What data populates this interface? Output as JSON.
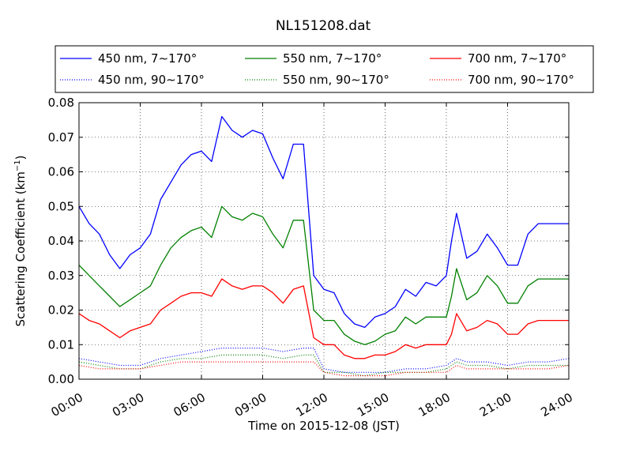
{
  "chart_data": {
    "type": "line",
    "title": "NL151208.dat",
    "xlabel": "Time on 2015-12-08 (JST)",
    "ylabel": "Scattering Coefficient (km",
    "ylabel_sup": "−1",
    "ylabel_close": ")",
    "xlim_hours": [
      0,
      24
    ],
    "ylim": [
      0,
      0.08
    ],
    "x_ticks": [
      "00:00",
      "03:00",
      "06:00",
      "09:00",
      "12:00",
      "15:00",
      "18:00",
      "21:00",
      "24:00"
    ],
    "y_ticks": [
      "0.00",
      "0.01",
      "0.02",
      "0.03",
      "0.04",
      "0.05",
      "0.06",
      "0.07",
      "0.08"
    ],
    "grid": true,
    "legend_position": "top (above plot)",
    "series": [
      {
        "name": "450 nm, 7∼170°",
        "color": "#0000ff",
        "style": "solid",
        "x": [
          "00:00",
          "00:30",
          "01:00",
          "01:30",
          "02:00",
          "02:30",
          "03:00",
          "03:30",
          "04:00",
          "04:30",
          "05:00",
          "05:30",
          "06:00",
          "06:30",
          "07:00",
          "07:30",
          "08:00",
          "08:30",
          "09:00",
          "09:30",
          "10:00",
          "10:30",
          "11:00",
          "11:30",
          "12:00",
          "12:30",
          "13:00",
          "13:30",
          "14:00",
          "14:30",
          "15:00",
          "15:30",
          "16:00",
          "16:30",
          "17:00",
          "17:30",
          "18:00",
          "18:15",
          "18:30",
          "19:00",
          "19:30",
          "20:00",
          "20:30",
          "21:00",
          "21:30",
          "22:00",
          "22:30",
          "23:00",
          "23:30",
          "24:00"
        ],
        "y": [
          0.05,
          0.045,
          0.042,
          0.036,
          0.032,
          0.036,
          0.038,
          0.042,
          0.052,
          0.057,
          0.062,
          0.065,
          0.066,
          0.063,
          0.076,
          0.072,
          0.07,
          0.072,
          0.071,
          0.064,
          0.058,
          0.068,
          0.068,
          0.03,
          0.026,
          0.025,
          0.019,
          0.016,
          0.015,
          0.018,
          0.019,
          0.021,
          0.026,
          0.024,
          0.028,
          0.027,
          0.03,
          0.04,
          0.048,
          0.035,
          0.037,
          0.042,
          0.038,
          0.033,
          0.033,
          0.042,
          0.045,
          0.045,
          0.045,
          0.045
        ]
      },
      {
        "name": "550 nm, 7∼170°",
        "color": "#008000",
        "style": "solid",
        "x": [
          "00:00",
          "00:30",
          "01:00",
          "01:30",
          "02:00",
          "02:30",
          "03:00",
          "03:30",
          "04:00",
          "04:30",
          "05:00",
          "05:30",
          "06:00",
          "06:30",
          "07:00",
          "07:30",
          "08:00",
          "08:30",
          "09:00",
          "09:30",
          "10:00",
          "10:30",
          "11:00",
          "11:30",
          "12:00",
          "12:30",
          "13:00",
          "13:30",
          "14:00",
          "14:30",
          "15:00",
          "15:30",
          "16:00",
          "16:30",
          "17:00",
          "17:30",
          "18:00",
          "18:15",
          "18:30",
          "19:00",
          "19:30",
          "20:00",
          "20:30",
          "21:00",
          "21:30",
          "22:00",
          "22:30",
          "23:00",
          "23:30",
          "24:00"
        ],
        "y": [
          0.033,
          0.03,
          0.027,
          0.024,
          0.021,
          0.023,
          0.025,
          0.027,
          0.033,
          0.038,
          0.041,
          0.043,
          0.044,
          0.041,
          0.05,
          0.047,
          0.046,
          0.048,
          0.047,
          0.042,
          0.038,
          0.046,
          0.046,
          0.02,
          0.017,
          0.017,
          0.013,
          0.011,
          0.01,
          0.011,
          0.013,
          0.014,
          0.018,
          0.016,
          0.018,
          0.018,
          0.018,
          0.024,
          0.032,
          0.023,
          0.025,
          0.03,
          0.027,
          0.022,
          0.022,
          0.027,
          0.029,
          0.029,
          0.029,
          0.029
        ]
      },
      {
        "name": "700 nm, 7∼170°",
        "color": "#ff0000",
        "style": "solid",
        "x": [
          "00:00",
          "00:30",
          "01:00",
          "01:30",
          "02:00",
          "02:30",
          "03:00",
          "03:30",
          "04:00",
          "04:30",
          "05:00",
          "05:30",
          "06:00",
          "06:30",
          "07:00",
          "07:30",
          "08:00",
          "08:30",
          "09:00",
          "09:30",
          "10:00",
          "10:30",
          "11:00",
          "11:30",
          "12:00",
          "12:30",
          "13:00",
          "13:30",
          "14:00",
          "14:30",
          "15:00",
          "15:30",
          "16:00",
          "16:30",
          "17:00",
          "17:30",
          "18:00",
          "18:15",
          "18:30",
          "19:00",
          "19:30",
          "20:00",
          "20:30",
          "21:00",
          "21:30",
          "22:00",
          "22:30",
          "23:00",
          "23:30",
          "24:00"
        ],
        "y": [
          0.019,
          0.017,
          0.016,
          0.014,
          0.012,
          0.014,
          0.015,
          0.016,
          0.02,
          0.022,
          0.024,
          0.025,
          0.025,
          0.024,
          0.029,
          0.027,
          0.026,
          0.027,
          0.027,
          0.025,
          0.022,
          0.026,
          0.027,
          0.012,
          0.01,
          0.01,
          0.007,
          0.006,
          0.006,
          0.007,
          0.007,
          0.008,
          0.01,
          0.009,
          0.01,
          0.01,
          0.01,
          0.013,
          0.019,
          0.014,
          0.015,
          0.017,
          0.016,
          0.013,
          0.013,
          0.016,
          0.017,
          0.017,
          0.017,
          0.017
        ]
      },
      {
        "name": "450 nm, 90∼170°",
        "color": "#0000ff",
        "style": "dotted",
        "x": [
          "00:00",
          "01:00",
          "02:00",
          "03:00",
          "04:00",
          "05:00",
          "06:00",
          "07:00",
          "08:00",
          "09:00",
          "10:00",
          "11:00",
          "11:30",
          "12:00",
          "13:00",
          "14:00",
          "15:00",
          "16:00",
          "17:00",
          "18:00",
          "18:30",
          "19:00",
          "20:00",
          "21:00",
          "22:00",
          "23:00",
          "24:00"
        ],
        "y": [
          0.006,
          0.005,
          0.004,
          0.004,
          0.006,
          0.007,
          0.008,
          0.009,
          0.009,
          0.009,
          0.008,
          0.009,
          0.009,
          0.003,
          0.002,
          0.002,
          0.002,
          0.003,
          0.003,
          0.004,
          0.006,
          0.005,
          0.005,
          0.004,
          0.005,
          0.005,
          0.006
        ]
      },
      {
        "name": "550 nm, 90∼170°",
        "color": "#008000",
        "style": "dotted",
        "x": [
          "00:00",
          "01:00",
          "02:00",
          "03:00",
          "04:00",
          "05:00",
          "06:00",
          "07:00",
          "08:00",
          "09:00",
          "10:00",
          "11:00",
          "11:30",
          "12:00",
          "13:00",
          "14:00",
          "15:00",
          "16:00",
          "17:00",
          "18:00",
          "18:30",
          "19:00",
          "20:00",
          "21:00",
          "22:00",
          "23:00",
          "24:00"
        ],
        "y": [
          0.005,
          0.004,
          0.003,
          0.003,
          0.005,
          0.006,
          0.006,
          0.007,
          0.007,
          0.007,
          0.006,
          0.007,
          0.007,
          0.002,
          0.002,
          0.001,
          0.002,
          0.002,
          0.002,
          0.003,
          0.005,
          0.004,
          0.004,
          0.003,
          0.004,
          0.004,
          0.004
        ]
      },
      {
        "name": "700 nm, 90∼170°",
        "color": "#ff0000",
        "style": "dotted",
        "x": [
          "00:00",
          "01:00",
          "02:00",
          "03:00",
          "04:00",
          "05:00",
          "06:00",
          "07:00",
          "08:00",
          "09:00",
          "10:00",
          "11:00",
          "11:30",
          "12:00",
          "13:00",
          "14:00",
          "15:00",
          "16:00",
          "17:00",
          "18:00",
          "18:30",
          "19:00",
          "20:00",
          "21:00",
          "22:00",
          "23:00",
          "24:00"
        ],
        "y": [
          0.004,
          0.003,
          0.003,
          0.003,
          0.004,
          0.005,
          0.005,
          0.005,
          0.005,
          0.005,
          0.005,
          0.005,
          0.005,
          0.002,
          0.001,
          0.001,
          0.001,
          0.002,
          0.002,
          0.002,
          0.004,
          0.003,
          0.003,
          0.003,
          0.003,
          0.003,
          0.004
        ]
      }
    ],
    "legend_order": [
      0,
      1,
      2,
      3,
      4,
      5
    ]
  }
}
